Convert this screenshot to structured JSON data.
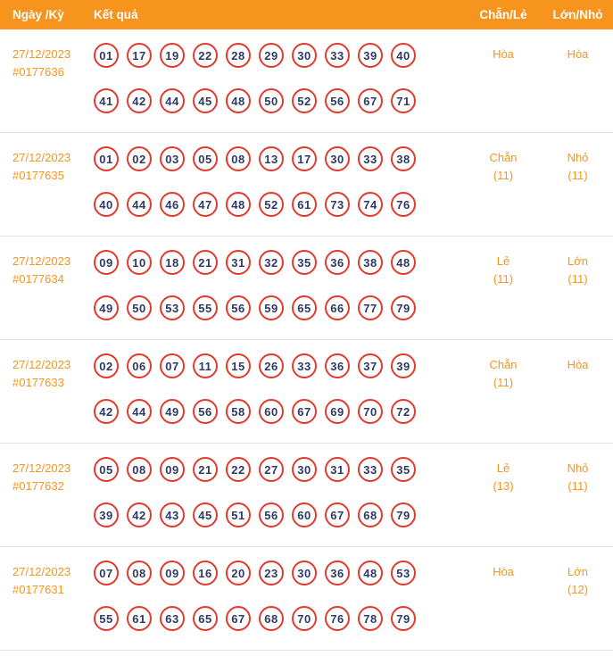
{
  "header": {
    "col_date": "Ngày /Kỳ",
    "col_result": "Kết quả",
    "col_evenodd": "Chẵn/Lẻ",
    "col_bigsmall": "Lớn/Nhỏ"
  },
  "colors": {
    "accent_orange": "#F7941E",
    "ball_border_red": "#E23B2E",
    "number_navy": "#2E3A66"
  },
  "rows": [
    {
      "date": "27/12/2023",
      "id": "#0177636",
      "numbers_line1": [
        "01",
        "17",
        "19",
        "22",
        "28",
        "29",
        "30",
        "33",
        "39",
        "40"
      ],
      "numbers_line2": [
        "41",
        "42",
        "44",
        "45",
        "48",
        "50",
        "52",
        "56",
        "67",
        "71"
      ],
      "evenodd": "Hòa",
      "evenodd_count": "",
      "bigsmall": "Hòa",
      "bigsmall_count": ""
    },
    {
      "date": "27/12/2023",
      "id": "#0177635",
      "numbers_line1": [
        "01",
        "02",
        "03",
        "05",
        "08",
        "13",
        "17",
        "30",
        "33",
        "38"
      ],
      "numbers_line2": [
        "40",
        "44",
        "46",
        "47",
        "48",
        "52",
        "61",
        "73",
        "74",
        "76"
      ],
      "evenodd": "Chẵn",
      "evenodd_count": "(11)",
      "bigsmall": "Nhỏ",
      "bigsmall_count": "(11)"
    },
    {
      "date": "27/12/2023",
      "id": "#0177634",
      "numbers_line1": [
        "09",
        "10",
        "18",
        "21",
        "31",
        "32",
        "35",
        "36",
        "38",
        "48"
      ],
      "numbers_line2": [
        "49",
        "50",
        "53",
        "55",
        "56",
        "59",
        "65",
        "66",
        "77",
        "79"
      ],
      "evenodd": "Lẻ",
      "evenodd_count": "(11)",
      "bigsmall": "Lớn",
      "bigsmall_count": "(11)"
    },
    {
      "date": "27/12/2023",
      "id": "#0177633",
      "numbers_line1": [
        "02",
        "06",
        "07",
        "11",
        "15",
        "26",
        "33",
        "36",
        "37",
        "39"
      ],
      "numbers_line2": [
        "42",
        "44",
        "49",
        "56",
        "58",
        "60",
        "67",
        "69",
        "70",
        "72"
      ],
      "evenodd": "Chẵn",
      "evenodd_count": "(11)",
      "bigsmall": "Hòa",
      "bigsmall_count": ""
    },
    {
      "date": "27/12/2023",
      "id": "#0177632",
      "numbers_line1": [
        "05",
        "08",
        "09",
        "21",
        "22",
        "27",
        "30",
        "31",
        "33",
        "35"
      ],
      "numbers_line2": [
        "39",
        "42",
        "43",
        "45",
        "51",
        "56",
        "60",
        "67",
        "68",
        "79"
      ],
      "evenodd": "Lẻ",
      "evenodd_count": "(13)",
      "bigsmall": "Nhỏ",
      "bigsmall_count": "(11)"
    },
    {
      "date": "27/12/2023",
      "id": "#0177631",
      "numbers_line1": [
        "07",
        "08",
        "09",
        "16",
        "20",
        "23",
        "30",
        "36",
        "48",
        "53"
      ],
      "numbers_line2": [
        "55",
        "61",
        "63",
        "65",
        "67",
        "68",
        "70",
        "76",
        "78",
        "79"
      ],
      "evenodd": "Hòa",
      "evenodd_count": "",
      "bigsmall": "Lớn",
      "bigsmall_count": "(12)"
    }
  ]
}
